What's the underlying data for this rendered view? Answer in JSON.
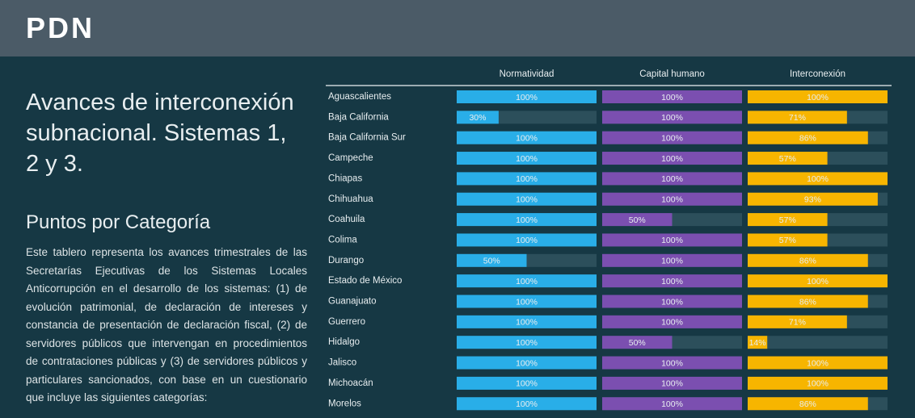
{
  "header": {
    "logo": "PDN"
  },
  "title": "Avances de interconexión subnacional. Sistemas 1, 2 y 3.",
  "section_title": "Puntos por Categoría",
  "description": "Este tablero representa los avances trimestrales de las Secretarías Ejecutivas de los Sistemas Locales Anticorrupción en el desarrollo de los sistemas: (1) de evolución patrimonial, de declaración de intereses y constancia de presentación de declaración fiscal, (2) de servidores públicos que intervengan en procedimientos de contrataciones públicas y (3) de servidores públicos y particulares sancionados, con base en un cuestionario que incluye las siguientes categorías:",
  "chart_data": {
    "type": "bar",
    "orientation": "horizontal",
    "categories": [
      "Aguascalientes",
      "Baja California",
      "Baja California Sur",
      "Campeche",
      "Chiapas",
      "Chihuahua",
      "Coahuila",
      "Colima",
      "Durango",
      "Estado de México",
      "Guanajuato",
      "Guerrero",
      "Hidalgo",
      "Jalisco",
      "Michoacán",
      "Morelos"
    ],
    "xlim": [
      0,
      100
    ],
    "series": [
      {
        "name": "Normatividad",
        "color": "#29aee8",
        "values": [
          100,
          30,
          100,
          100,
          100,
          100,
          100,
          100,
          50,
          100,
          100,
          100,
          100,
          100,
          100,
          100
        ],
        "value_labels": [
          "100%",
          "30%",
          "100%",
          "100%",
          "100%",
          "100%",
          "100%",
          "100%",
          "50%",
          "100%",
          "100%",
          "100%",
          "100%",
          "100%",
          "100%",
          "100%"
        ]
      },
      {
        "name": "Capital humano",
        "color": "#7b4fb0",
        "values": [
          100,
          100,
          100,
          100,
          100,
          100,
          50,
          100,
          100,
          100,
          100,
          100,
          50,
          100,
          100,
          100
        ],
        "value_labels": [
          "100%",
          "100%",
          "100%",
          "100%",
          "100%",
          "100%",
          "50%",
          "100%",
          "100%",
          "100%",
          "100%",
          "100%",
          "50%",
          "100%",
          "100%",
          "100%"
        ]
      },
      {
        "name": "Interconexión",
        "color": "#f7b500",
        "values": [
          100,
          71,
          86,
          57,
          100,
          93,
          57,
          57,
          86,
          100,
          86,
          71,
          14,
          100,
          100,
          86
        ],
        "value_labels": [
          "100%",
          "71%",
          "86%",
          "57%",
          "100%",
          "93%",
          "57%",
          "57%",
          "86%",
          "100%",
          "86%",
          "71%",
          "14%",
          "100%",
          "100%",
          "86%"
        ]
      }
    ]
  }
}
